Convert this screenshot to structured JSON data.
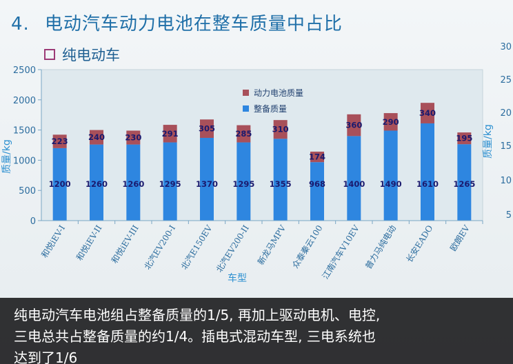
{
  "heading": {
    "number": "4.",
    "text": "电动汽车动力电池在整车质量中占比"
  },
  "subheading": {
    "text": "纯电动车"
  },
  "chart_data": {
    "type": "bar",
    "stacked": true,
    "categories": [
      "和悦iEV-I",
      "和悦iEV-II",
      "和悦iEV-III",
      "北汽EV200-I",
      "北汽E150EV",
      "北汽EV200-II",
      "新龙马MPV",
      "众泰秦云100",
      "江南汽车V10EV",
      "普力马纯电动",
      "长安EADO",
      "欧朗EV"
    ],
    "series": [
      {
        "name": "整备质量",
        "values": [
          1200,
          1260,
          1260,
          1295,
          1370,
          1295,
          1355,
          968,
          1400,
          1490,
          1610,
          1265
        ]
      },
      {
        "name": "动力电池质量",
        "values": [
          223,
          240,
          230,
          291,
          305,
          285,
          310,
          174,
          360,
          290,
          340,
          195
        ]
      }
    ],
    "ylim": [
      0,
      2500
    ],
    "yticks": [
      "0",
      "500",
      "1000",
      "1500",
      "2000",
      "2500"
    ],
    "right_ticks": [
      "30",
      "25",
      "20",
      "15",
      "10",
      "5"
    ],
    "xlabel": "车型",
    "ylabel": "质量/kg",
    "ylabel_right": "质量/kg",
    "legend_position": "top-center",
    "grid": false,
    "colors": {
      "整备质量": "#2e86e0",
      "动力电池质量": "#a8505a"
    }
  },
  "caption": {
    "line1": "纯电动汽车电池组占整备质量的1/5, 再加上驱动电机、电控,",
    "line2": "三电总共占整备质量的约1/4。插电式混动车型, 三电系统也",
    "line3": "达到了1/6"
  }
}
